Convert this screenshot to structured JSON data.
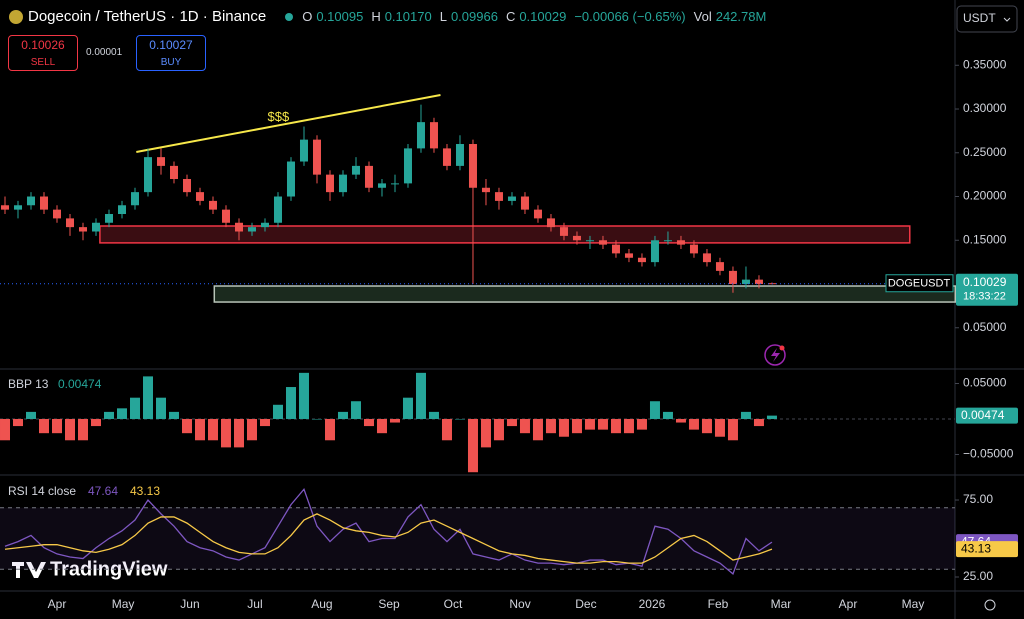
{
  "header": {
    "symbol": "Dogecoin / TetherUS · 1D · Binance",
    "ohlc": [
      {
        "key": "O",
        "value": "0.10095"
      },
      {
        "key": "H",
        "value": "0.10170"
      },
      {
        "key": "L",
        "value": "0.09966"
      },
      {
        "key": "C",
        "value": "0.10029"
      }
    ],
    "change": "−0.00066 (−0.65%)",
    "vol_key": "Vol",
    "vol": "242.78M"
  },
  "trade": {
    "sell_price": "0.10026",
    "sell": "SELL",
    "spread": "0.00001",
    "buy_price": "0.10027",
    "buy": "BUY"
  },
  "currency": "USDT",
  "logo": "TradingView",
  "chart_data": [
    {
      "type": "candlestick",
      "up_color": "#26a69a",
      "down_color": "#ef5350",
      "candles": [
        [
          0.19,
          0.2,
          0.18,
          0.185
        ],
        [
          0.185,
          0.195,
          0.175,
          0.19
        ],
        [
          0.19,
          0.205,
          0.185,
          0.2
        ],
        [
          0.2,
          0.205,
          0.18,
          0.185
        ],
        [
          0.185,
          0.19,
          0.17,
          0.175
        ],
        [
          0.175,
          0.18,
          0.155,
          0.165
        ],
        [
          0.165,
          0.17,
          0.15,
          0.16
        ],
        [
          0.16,
          0.175,
          0.155,
          0.17
        ],
        [
          0.17,
          0.185,
          0.165,
          0.18
        ],
        [
          0.18,
          0.195,
          0.175,
          0.19
        ],
        [
          0.19,
          0.21,
          0.185,
          0.205
        ],
        [
          0.205,
          0.255,
          0.2,
          0.245
        ],
        [
          0.245,
          0.255,
          0.225,
          0.235
        ],
        [
          0.235,
          0.24,
          0.215,
          0.22
        ],
        [
          0.22,
          0.225,
          0.2,
          0.205
        ],
        [
          0.205,
          0.21,
          0.19,
          0.195
        ],
        [
          0.195,
          0.2,
          0.18,
          0.185
        ],
        [
          0.185,
          0.19,
          0.165,
          0.17
        ],
        [
          0.17,
          0.175,
          0.15,
          0.16
        ],
        [
          0.16,
          0.17,
          0.155,
          0.165
        ],
        [
          0.165,
          0.175,
          0.16,
          0.17
        ],
        [
          0.17,
          0.205,
          0.165,
          0.2
        ],
        [
          0.2,
          0.245,
          0.195,
          0.24
        ],
        [
          0.24,
          0.28,
          0.235,
          0.265
        ],
        [
          0.265,
          0.27,
          0.215,
          0.225
        ],
        [
          0.225,
          0.23,
          0.195,
          0.205
        ],
        [
          0.205,
          0.23,
          0.2,
          0.225
        ],
        [
          0.225,
          0.245,
          0.22,
          0.235
        ],
        [
          0.235,
          0.24,
          0.205,
          0.21
        ],
        [
          0.21,
          0.22,
          0.2,
          0.215
        ],
        [
          0.215,
          0.225,
          0.205,
          0.215
        ],
        [
          0.215,
          0.26,
          0.21,
          0.255
        ],
        [
          0.255,
          0.305,
          0.25,
          0.285
        ],
        [
          0.285,
          0.29,
          0.25,
          0.255
        ],
        [
          0.255,
          0.26,
          0.23,
          0.235
        ],
        [
          0.235,
          0.27,
          0.23,
          0.26
        ],
        [
          0.26,
          0.265,
          0.1,
          0.21
        ],
        [
          0.21,
          0.22,
          0.19,
          0.205
        ],
        [
          0.205,
          0.21,
          0.185,
          0.195
        ],
        [
          0.195,
          0.205,
          0.19,
          0.2
        ],
        [
          0.2,
          0.205,
          0.18,
          0.185
        ],
        [
          0.185,
          0.19,
          0.17,
          0.175
        ],
        [
          0.175,
          0.18,
          0.16,
          0.165
        ],
        [
          0.165,
          0.17,
          0.15,
          0.155
        ],
        [
          0.155,
          0.16,
          0.145,
          0.15
        ],
        [
          0.15,
          0.155,
          0.14,
          0.15
        ],
        [
          0.15,
          0.155,
          0.14,
          0.145
        ],
        [
          0.145,
          0.15,
          0.13,
          0.135
        ],
        [
          0.135,
          0.14,
          0.125,
          0.13
        ],
        [
          0.13,
          0.135,
          0.12,
          0.125
        ],
        [
          0.125,
          0.155,
          0.12,
          0.15
        ],
        [
          0.15,
          0.16,
          0.145,
          0.15
        ],
        [
          0.15,
          0.155,
          0.14,
          0.145
        ],
        [
          0.145,
          0.15,
          0.13,
          0.135
        ],
        [
          0.135,
          0.14,
          0.12,
          0.125
        ],
        [
          0.125,
          0.13,
          0.11,
          0.115
        ],
        [
          0.115,
          0.12,
          0.09,
          0.1
        ],
        [
          0.1,
          0.12,
          0.095,
          0.105
        ],
        [
          0.105,
          0.11,
          0.095,
          0.1
        ],
        [
          0.10095,
          0.1017,
          0.09966,
          0.10029
        ]
      ],
      "xlim": [
        -0.385,
        73.08
      ],
      "xticks": [
        {
          "value": 4.0,
          "label": "Apr"
        },
        {
          "value": 9.08,
          "label": "May"
        },
        {
          "value": 14.23,
          "label": "Jun"
        },
        {
          "value": 19.23,
          "label": "Jul"
        },
        {
          "value": 24.38,
          "label": "Aug"
        },
        {
          "value": 29.54,
          "label": "Sep"
        },
        {
          "value": 34.46,
          "label": "Oct"
        },
        {
          "value": 39.62,
          "label": "Nov"
        },
        {
          "value": 44.69,
          "label": "Dec"
        },
        {
          "value": 49.77,
          "label": "2026"
        },
        {
          "value": 54.85,
          "label": "Feb"
        },
        {
          "value": 59.69,
          "label": "Mar"
        },
        {
          "value": 64.85,
          "label": "Apr"
        },
        {
          "value": 69.85,
          "label": "May"
        }
      ],
      "ylim": [
        0.004,
        0.4246
      ],
      "yticks": [
        {
          "value": 0.35,
          "label": "0.35000"
        },
        {
          "value": 0.3,
          "label": "0.30000"
        },
        {
          "value": 0.25,
          "label": "0.25000"
        },
        {
          "value": 0.2,
          "label": "0.20000"
        },
        {
          "value": 0.15,
          "label": "0.15000"
        },
        {
          "value": 0.05,
          "label": "0.05000"
        }
      ],
      "last_label": {
        "symbol": "DOGEUSDT",
        "countdown": "18:33:22"
      },
      "zones": [
        {
          "x": [
            7.3,
            69.6
          ],
          "y": [
            0.147,
            0.1663
          ],
          "stroke": "#f23645",
          "fill": "#3a0d12"
        },
        {
          "x": [
            16.1,
            73.1
          ],
          "y": [
            0.0794,
            0.0977
          ],
          "stroke": "#b8c4b8",
          "fill": "#1b2a1e"
        }
      ],
      "trendline": {
        "x": [
          10.1,
          33.5
        ],
        "y": [
          0.2509,
          0.316
        ],
        "color": "#f7e84a",
        "label": "$$$"
      }
    },
    {
      "type": "histogram",
      "title": "BBP 13",
      "up_color": "#26a69a",
      "down_color": "#ef5350",
      "values": [
        -0.03,
        -0.01,
        0.01,
        -0.02,
        -0.02,
        -0.03,
        -0.03,
        -0.01,
        0.01,
        0.015,
        0.03,
        0.06,
        0.03,
        0.01,
        -0.02,
        -0.03,
        -0.03,
        -0.04,
        -0.04,
        -0.03,
        -0.01,
        0.02,
        0.045,
        0.065,
        0.0,
        -0.03,
        0.01,
        0.025,
        -0.01,
        -0.02,
        -0.005,
        0.03,
        0.065,
        0.01,
        -0.03,
        0.0,
        -0.075,
        -0.04,
        -0.03,
        -0.01,
        -0.02,
        -0.03,
        -0.02,
        -0.025,
        -0.02,
        -0.015,
        -0.015,
        -0.02,
        -0.02,
        -0.015,
        0.025,
        0.01,
        -0.005,
        -0.015,
        -0.02,
        -0.025,
        -0.03,
        0.01,
        -0.01,
        0.00474
      ],
      "ylim": [
        -0.0775,
        0.069
      ],
      "yticks": [
        {
          "value": 0.05,
          "label": "0.05000"
        },
        {
          "value": -0.05,
          "label": "−0.05000"
        }
      ]
    },
    {
      "type": "line",
      "title": "RSI 14 close",
      "band": [
        30,
        70
      ],
      "band_color": "#7e57c2",
      "series": [
        {
          "color": "#7e57c2",
          "values": [
            45,
            48,
            52,
            44,
            40,
            38,
            37,
            44,
            50,
            55,
            62,
            75,
            66,
            58,
            48,
            44,
            42,
            38,
            36,
            40,
            44,
            58,
            72,
            82,
            58,
            48,
            56,
            60,
            48,
            50,
            50,
            64,
            72,
            56,
            48,
            56,
            40,
            38,
            36,
            40,
            36,
            34,
            34,
            33,
            34,
            36,
            36,
            33,
            34,
            32,
            58,
            56,
            50,
            42,
            38,
            34,
            27,
            50,
            42,
            47.64
          ]
        },
        {
          "color": "#f7c948",
          "values": [
            43,
            44,
            45,
            46,
            46,
            44,
            42,
            41,
            43,
            46,
            52,
            60,
            64,
            64,
            60,
            54,
            48,
            44,
            41,
            40,
            40,
            44,
            52,
            62,
            66,
            62,
            57,
            55,
            54,
            52,
            51,
            54,
            60,
            62,
            58,
            54,
            50,
            46,
            42,
            40,
            39,
            37,
            36,
            35,
            34,
            34,
            35,
            35,
            34,
            34,
            38,
            44,
            50,
            52,
            48,
            42,
            36,
            38,
            40,
            43.13
          ]
        }
      ],
      "ylim": [
        16.56,
        90.6
      ],
      "yticks": [
        {
          "value": 75,
          "label": "75.00"
        },
        {
          "value": 25,
          "label": "25.00"
        }
      ]
    }
  ]
}
